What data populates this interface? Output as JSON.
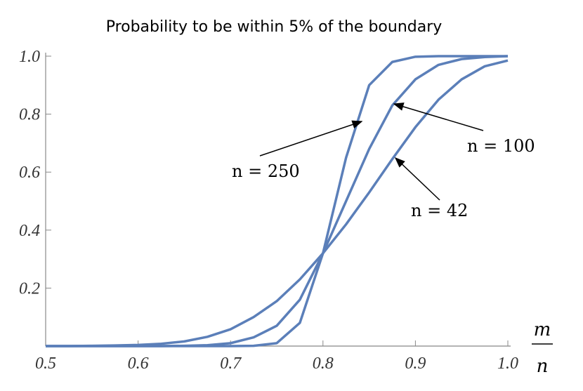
{
  "chart_data": {
    "type": "line",
    "title": "Probability to be within 5% of the boundary",
    "xlabel": {
      "numerator": "m",
      "denominator": "n"
    },
    "x": [
      0.5,
      0.525,
      0.55,
      0.575,
      0.6,
      0.625,
      0.65,
      0.675,
      0.7,
      0.725,
      0.75,
      0.775,
      0.8,
      0.825,
      0.85,
      0.875,
      0.9,
      0.925,
      0.95,
      0.975,
      1.0
    ],
    "series": [
      {
        "name": "n = 250",
        "color": "#5b7fb9",
        "values": [
          0,
          0,
          0,
          0,
          0,
          0,
          0,
          0,
          0,
          0.001,
          0.01,
          0.08,
          0.32,
          0.65,
          0.9,
          0.98,
          0.998,
          1,
          1,
          1,
          1
        ]
      },
      {
        "name": "n = 100",
        "color": "#5b7fb9",
        "values": [
          0,
          0,
          0,
          0,
          0,
          0,
          0.001,
          0.003,
          0.01,
          0.03,
          0.07,
          0.16,
          0.32,
          0.5,
          0.68,
          0.83,
          0.92,
          0.97,
          0.99,
          0.997,
          1
        ]
      },
      {
        "name": "n = 42",
        "color": "#5b7fb9",
        "values": [
          0,
          0,
          0.001,
          0.002,
          0.004,
          0.008,
          0.016,
          0.032,
          0.058,
          0.1,
          0.155,
          0.23,
          0.32,
          0.42,
          0.53,
          0.645,
          0.755,
          0.85,
          0.92,
          0.965,
          0.985
        ]
      }
    ],
    "xlim": [
      0.5,
      1.0
    ],
    "ylim": [
      0,
      1.0
    ],
    "xticks": [
      0.5,
      0.6,
      0.7,
      0.8,
      0.9,
      {
        "value": 1,
        "label": "1.0"
      }
    ],
    "yticks": [
      0.2,
      0.4,
      0.6,
      0.8,
      {
        "value": 1,
        "label": "1.0"
      }
    ]
  }
}
